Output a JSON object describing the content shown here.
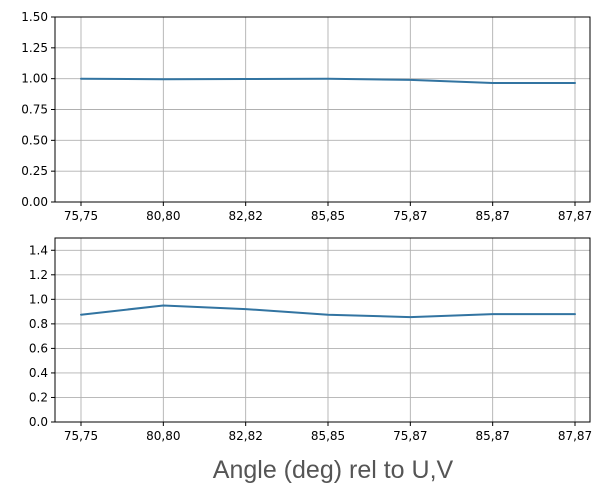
{
  "chart_data": {
    "type": "line",
    "xlabel": "Angle (deg) rel to U,V",
    "line_color": "#3274a1",
    "grid": true,
    "categories": [
      "75,75",
      "80,80",
      "82,82",
      "85,85",
      "75,87",
      "85,87",
      "87,87"
    ],
    "subplots": [
      {
        "ylim": [
          0,
          1.5
        ],
        "yticks": [
          0.0,
          0.25,
          0.5,
          0.75,
          1.0,
          1.25,
          1.5
        ],
        "ytick_labels": [
          "0.00",
          "0.25",
          "0.50",
          "0.75",
          "1.00",
          "1.25",
          "1.50"
        ],
        "values": [
          1.0,
          0.995,
          0.997,
          1.0,
          0.99,
          0.965,
          0.965
        ]
      },
      {
        "ylim": [
          0,
          1.5
        ],
        "yticks": [
          0.0,
          0.2,
          0.4,
          0.6,
          0.8,
          1.0,
          1.2,
          1.4
        ],
        "ytick_labels": [
          "0.0",
          "0.2",
          "0.4",
          "0.6",
          "0.8",
          "1.0",
          "1.2",
          "1.4"
        ],
        "values": [
          0.875,
          0.95,
          0.92,
          0.875,
          0.855,
          0.88,
          0.88
        ]
      }
    ]
  }
}
